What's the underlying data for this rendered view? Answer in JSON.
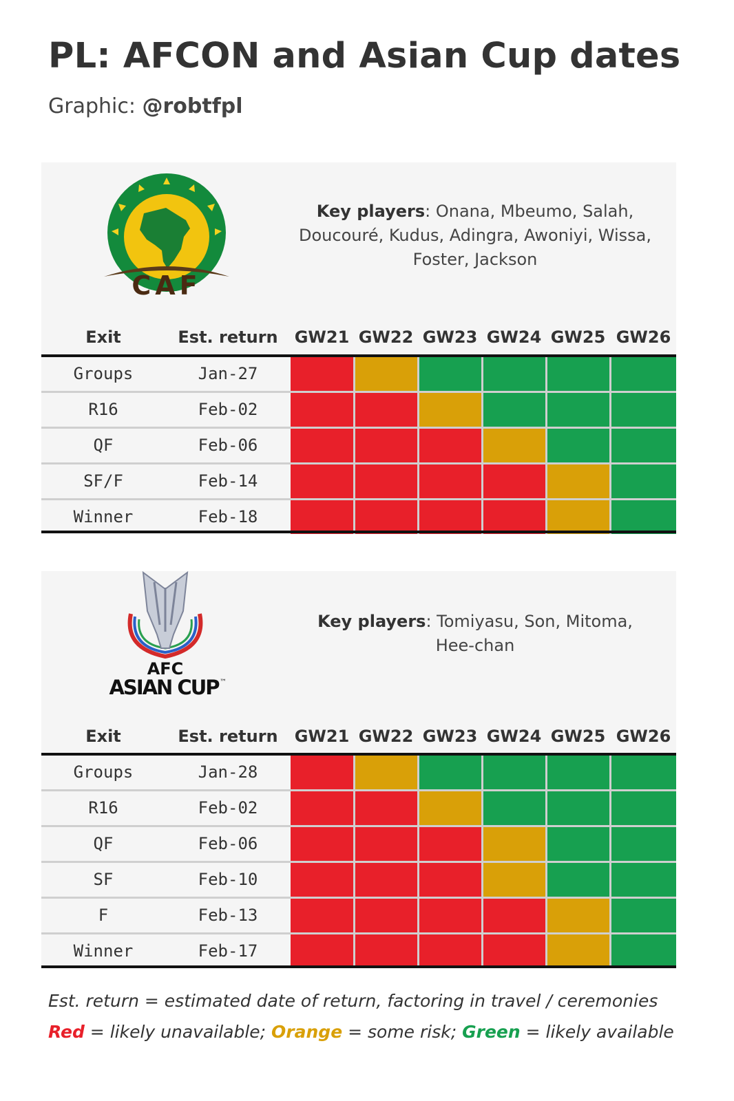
{
  "title": "PL: AFCON and Asian Cup dates",
  "subtitle": {
    "prefix": "Graphic: ",
    "handle": "@robtfpl"
  },
  "colors": {
    "red": "#e8202a",
    "orange": "#d9a008",
    "green": "#17a050"
  },
  "headers": {
    "exit": "Exit",
    "return": "Est. return",
    "gameweeks": [
      "GW21",
      "GW22",
      "GW23",
      "GW24",
      "GW25",
      "GW26"
    ]
  },
  "afcon": {
    "logo_text": "CAF",
    "key_label": "Key players",
    "key_players": ": Onana, Mbeumo, Salah, Doucouré, Kudus, Adingra, Awoniyi, Wissa, Foster, Jackson",
    "rows": [
      {
        "exit": "Groups",
        "return": "Jan-27",
        "status": [
          "red",
          "orange",
          "green",
          "green",
          "green",
          "green"
        ]
      },
      {
        "exit": "R16",
        "return": "Feb-02",
        "status": [
          "red",
          "red",
          "orange",
          "green",
          "green",
          "green"
        ]
      },
      {
        "exit": "QF",
        "return": "Feb-06",
        "status": [
          "red",
          "red",
          "red",
          "orange",
          "green",
          "green"
        ]
      },
      {
        "exit": "SF/F",
        "return": "Feb-14",
        "status": [
          "red",
          "red",
          "red",
          "red",
          "orange",
          "green"
        ]
      },
      {
        "exit": "Winner",
        "return": "Feb-18",
        "status": [
          "red",
          "red",
          "red",
          "red",
          "orange",
          "green"
        ]
      }
    ]
  },
  "asian_cup": {
    "logo_text_1": "AFC",
    "logo_text_2": "ASIAN CUP",
    "logo_tm": "™",
    "key_label": "Key players",
    "key_players": ": Tomiyasu, Son, Mitoma, Hee-chan",
    "rows": [
      {
        "exit": "Groups",
        "return": "Jan-28",
        "status": [
          "red",
          "orange",
          "green",
          "green",
          "green",
          "green"
        ]
      },
      {
        "exit": "R16",
        "return": "Feb-02",
        "status": [
          "red",
          "red",
          "orange",
          "green",
          "green",
          "green"
        ]
      },
      {
        "exit": "QF",
        "return": "Feb-06",
        "status": [
          "red",
          "red",
          "red",
          "orange",
          "green",
          "green"
        ]
      },
      {
        "exit": "SF",
        "return": "Feb-10",
        "status": [
          "red",
          "red",
          "red",
          "orange",
          "green",
          "green"
        ]
      },
      {
        "exit": "F",
        "return": "Feb-13",
        "status": [
          "red",
          "red",
          "red",
          "red",
          "orange",
          "green"
        ]
      },
      {
        "exit": "Winner",
        "return": "Feb-17",
        "status": [
          "red",
          "red",
          "red",
          "red",
          "orange",
          "green"
        ]
      }
    ]
  },
  "footnote": {
    "line1": "Est. return = estimated date of return, factoring in travel / ceremonies",
    "red_word": "Red",
    "red_text": " = likely unavailable; ",
    "orange_word": "Orange",
    "orange_text": " = some risk; ",
    "green_word": "Green",
    "green_text": " = likely available"
  }
}
